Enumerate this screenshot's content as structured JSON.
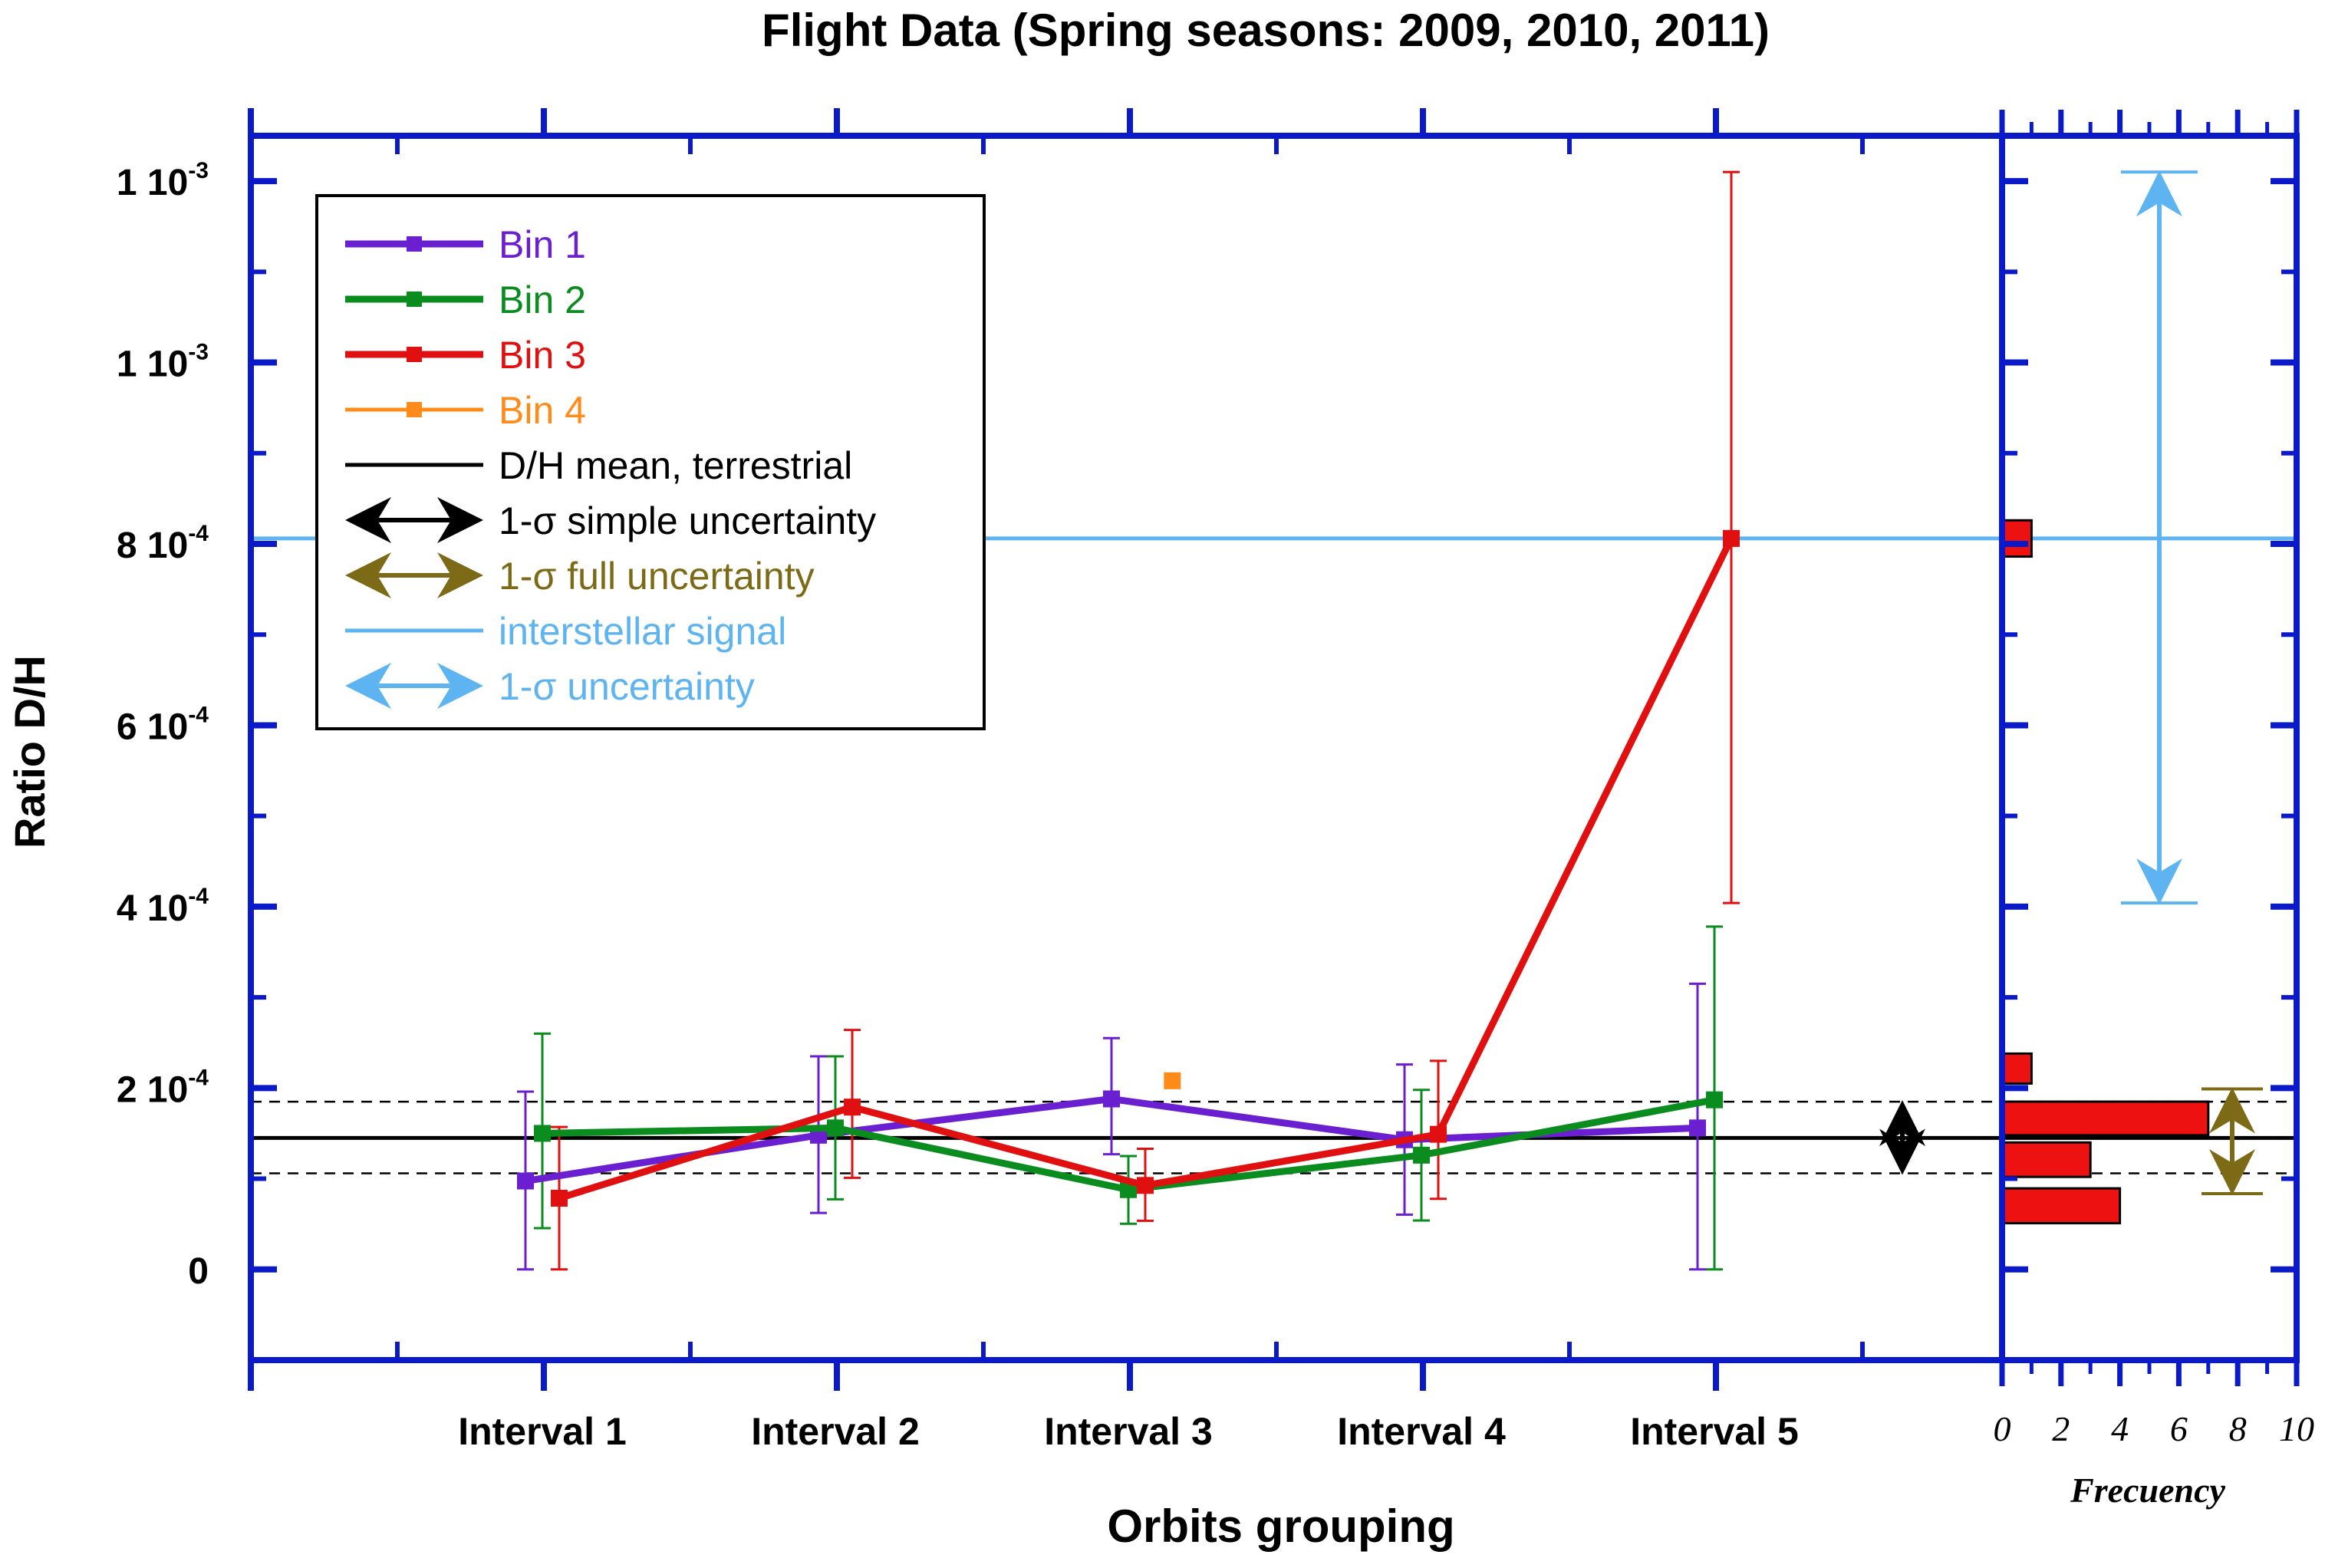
{
  "chart_data": {
    "type": "line",
    "title": "Flight Data (Spring seasons: 2009, 2010, 2011)",
    "xlabel": "Orbits grouping",
    "ylabel": "Ratio D/H",
    "categories": [
      "Interval 1",
      "Interval 2",
      "Interval 3",
      "Interval 4",
      "Interval 5"
    ],
    "yticks": [
      {
        "value": 0,
        "base": "0",
        "exp": ""
      },
      {
        "value": 0.0002,
        "base": "2 10",
        "exp": "-4"
      },
      {
        "value": 0.0004,
        "base": "4 10",
        "exp": "-4"
      },
      {
        "value": 0.0006,
        "base": "6 10",
        "exp": "-4"
      },
      {
        "value": 0.0008,
        "base": "8 10",
        "exp": "-4"
      },
      {
        "value": 0.001,
        "base": "1 10",
        "exp": "-3"
      },
      {
        "value": 0.0012,
        "base": "1 10",
        "exp": "-3"
      }
    ],
    "ylim": [
      -0.0001,
      0.00125
    ],
    "series": [
      {
        "name": "Bin 1",
        "color": "#6a1fd0",
        "values": [
          9.75e-05,
          0.000148,
          0.000188,
          0.000143,
          0.000156
        ],
        "err_low": [
          0.0,
          6.23e-05,
          0.000127,
          6.04e-05,
          0.0
        ],
        "err_high": [
          0.000196,
          0.000235,
          0.000255,
          0.000226,
          0.000315
        ]
      },
      {
        "name": "Bin 2",
        "color": "#0a8c1f",
        "values": [
          0.00015,
          0.000156,
          8.8e-05,
          0.000126,
          0.000187
        ],
        "err_low": [
          4.55e-05,
          7.73e-05,
          5.03e-05,
          5.4e-05,
          0.0
        ],
        "err_high": [
          0.00026,
          0.000235,
          0.000125,
          0.000198,
          0.000378
        ]
      },
      {
        "name": "Bin 3",
        "color": "#e01010",
        "values": [
          7.85e-05,
          0.000179,
          9.26e-05,
          0.000149,
          0.000806
        ],
        "err_low": [
          0.0,
          0.000101,
          5.36e-05,
          7.78e-05,
          0.000404
        ],
        "err_high": [
          0.000157,
          0.000264,
          0.000133,
          0.00023,
          0.00121
        ]
      },
      {
        "name": "Bin 4",
        "color": "#ff8c1a",
        "points": [
          {
            "x": 3.15,
            "y": 0.000208
          }
        ]
      }
    ],
    "terrestrial_mean": {
      "name": "D/H mean, terrestrial",
      "value": 0.000145,
      "color": "#000000"
    },
    "simple_uncertainty": {
      "name": "1-σ simple uncertainty",
      "low": 0.000106,
      "high": 0.000185,
      "color": "#000000"
    },
    "full_uncertainty": {
      "name": "1-σ full uncertainty",
      "low": 8.35e-05,
      "high": 0.000199,
      "color": "#7d6a17"
    },
    "interstellar_signal": {
      "name": "interstellar signal",
      "value": 0.000806,
      "low": 0.000404,
      "high": 0.00121,
      "color": "#5db4f0"
    },
    "interstellar_uncertainty_name": "1-σ uncertainty",
    "histogram": {
      "xlabel": "Frecuency",
      "xticks": [
        "0",
        "2",
        "4",
        "6",
        "8",
        "10"
      ],
      "xlim": [
        0,
        10
      ],
      "color": "#ee1111",
      "bars": [
        {
          "y_low": 5.1e-05,
          "y_high": 8.94e-05,
          "count": 4
        },
        {
          "y_low": 0.000102,
          "y_high": 0.00014,
          "count": 3
        },
        {
          "y_low": 0.000148,
          "y_high": 0.000185,
          "count": 7
        },
        {
          "y_low": 0.000205,
          "y_high": 0.000238,
          "count": 1
        },
        {
          "y_low": 0.000786,
          "y_high": 0.000826,
          "count": 1
        }
      ]
    },
    "grid": false,
    "legend_position": "top-left"
  }
}
